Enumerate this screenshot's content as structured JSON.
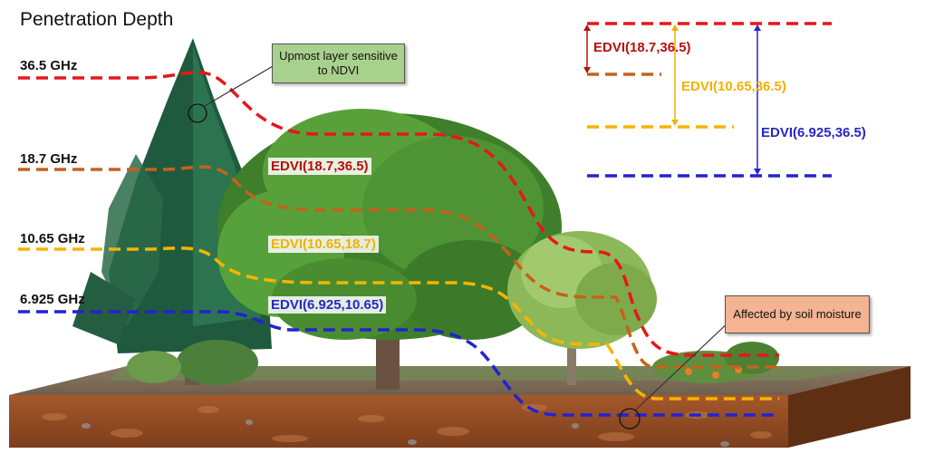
{
  "title": "Penetration Depth",
  "colors": {
    "red": "#e8161a",
    "brown": "#c5621c",
    "orange": "#f7b400",
    "blue": "#2222d6",
    "edvi_red_text": "#b80f0f",
    "edvi_orange_text": "#f3b000",
    "edvi_blue_text": "#2727c8",
    "callout_green": "#a8d18d",
    "callout_salmon": "#f4b393"
  },
  "frequencies": [
    {
      "label": "36.5 GHz",
      "color": "red"
    },
    {
      "label": "18.7 GHz",
      "color": "brown"
    },
    {
      "label": "10.65 GHz",
      "color": "orange"
    },
    {
      "label": "6.925 GHz",
      "color": "blue"
    }
  ],
  "scene_labels": [
    {
      "text": "EDVI(18.7,36.5)",
      "color": "edvi_red_text"
    },
    {
      "text": "EDVI(10.65,18.7)",
      "color": "edvi_orange_text"
    },
    {
      "text": "EDVI(6.925,10.65)",
      "color": "edvi_blue_text"
    }
  ],
  "legend_labels": [
    {
      "text": "EDVI(18.7,36.5)",
      "color": "edvi_red_text"
    },
    {
      "text": "EDVI(10.65,36.5)",
      "color": "edvi_orange_text"
    },
    {
      "text": "EDVI(6.925,36.5)",
      "color": "edvi_blue_text"
    }
  ],
  "callouts": [
    {
      "text": "Upmost layer sensitive to NDVI"
    },
    {
      "text": "Affected by soil moisture"
    }
  ]
}
